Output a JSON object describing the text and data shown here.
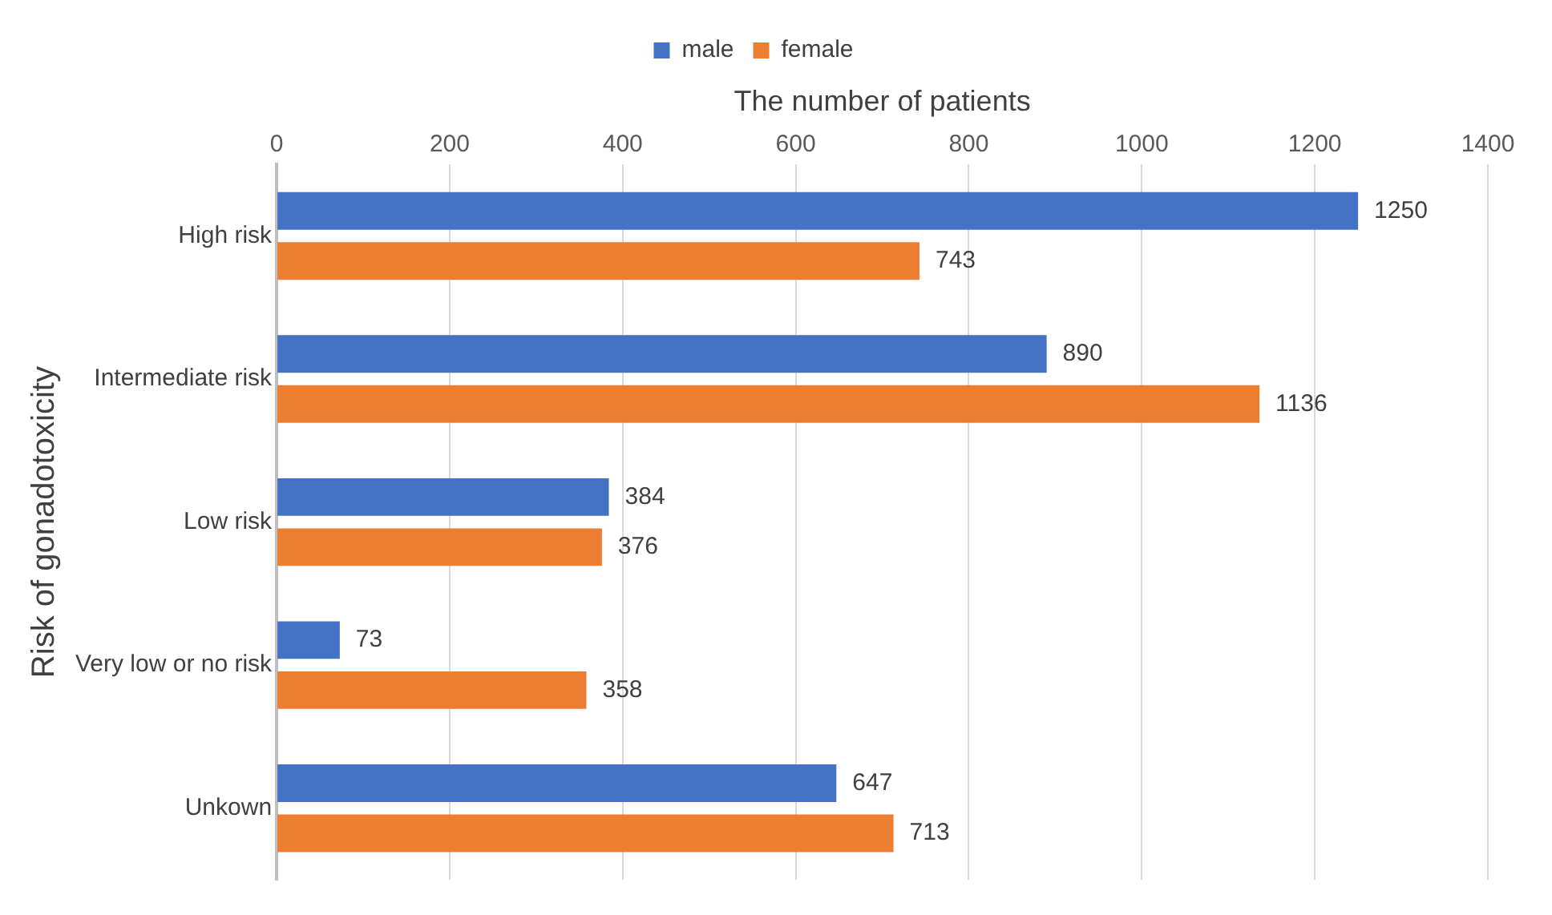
{
  "chart_data": {
    "type": "bar",
    "orientation": "horizontal",
    "xlabel": "The number of patients",
    "ylabel": "Risk of gonadotoxicity",
    "categories": [
      "High risk",
      "Intermediate risk",
      "Low risk",
      "Very low or no risk",
      "Unkown"
    ],
    "series": [
      {
        "name": "male",
        "color": "#4472c4",
        "values": [
          1250,
          890,
          384,
          73,
          647
        ]
      },
      {
        "name": "female",
        "color": "#ed7d31",
        "values": [
          743,
          1136,
          376,
          358,
          713
        ]
      }
    ],
    "xlim": [
      0,
      1400
    ],
    "xticks": [
      0,
      200,
      400,
      600,
      800,
      1000,
      1200,
      1400
    ],
    "grid": "x",
    "legend": "top",
    "data_labels": true
  }
}
